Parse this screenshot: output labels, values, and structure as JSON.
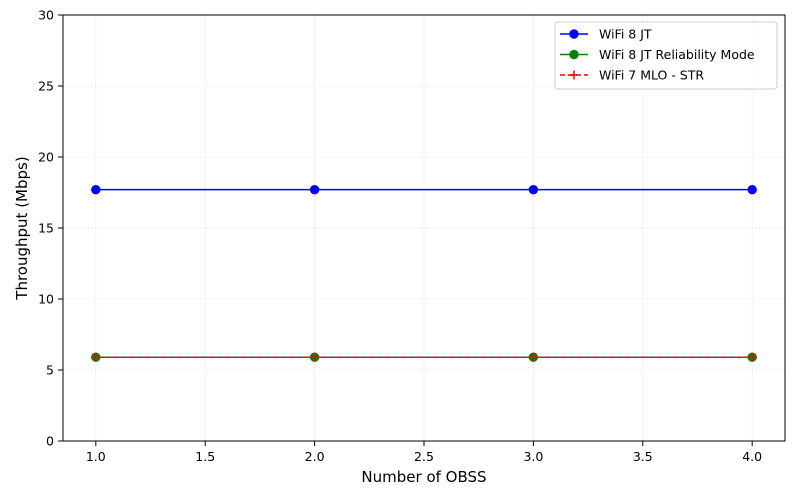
{
  "chart_data": {
    "type": "line",
    "title": "",
    "xlabel": "Number of OBSS",
    "ylabel": "Throughput (Mbps)",
    "x": [
      1.0,
      2.0,
      3.0,
      4.0
    ],
    "xlim": [
      0.85,
      4.15
    ],
    "ylim": [
      0,
      30
    ],
    "xticks": [
      1.0,
      1.5,
      2.0,
      2.5,
      3.0,
      3.5,
      4.0
    ],
    "xtick_labels": [
      "1.0",
      "1.5",
      "2.0",
      "2.5",
      "3.0",
      "3.5",
      "4.0"
    ],
    "yticks": [
      0,
      5,
      10,
      15,
      20,
      25,
      30
    ],
    "ytick_labels": [
      "0",
      "5",
      "10",
      "15",
      "20",
      "25",
      "30"
    ],
    "grid": true,
    "legend_position": "top-right",
    "series": [
      {
        "name": "WiFi 8 JT",
        "values": [
          17.7,
          17.7,
          17.7,
          17.7
        ],
        "color": "#0000ff",
        "style": "solid",
        "marker": "circle"
      },
      {
        "name": "WiFi 8 JT Reliability Mode",
        "values": [
          5.9,
          5.9,
          5.9,
          5.9
        ],
        "color": "#008000",
        "style": "solid",
        "marker": "circle"
      },
      {
        "name": "WiFi 7 MLO - STR",
        "values": [
          5.9,
          5.9,
          5.9,
          5.9
        ],
        "color": "#ff0000",
        "style": "dashed",
        "marker": "plus"
      }
    ]
  }
}
